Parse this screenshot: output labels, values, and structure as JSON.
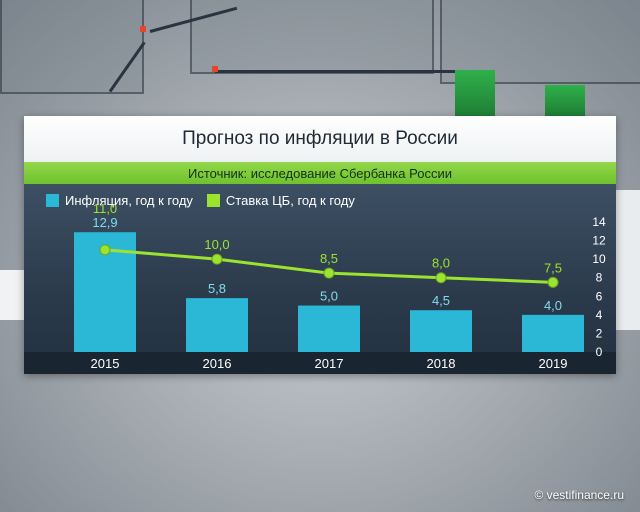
{
  "title": "Прогноз по инфляции в России",
  "source": "Источник: исследование Сбербанка России",
  "credit": "© vestifinance.ru",
  "colors": {
    "inflation": "#2ab8d6",
    "key_rate": "#9be32f"
  },
  "chart_data": {
    "type": "bar",
    "categories": [
      "2015",
      "2016",
      "2017",
      "2018",
      "2019"
    ],
    "series": [
      {
        "name": "Инфляция, год к году",
        "type": "bar",
        "values": [
          12.9,
          5.8,
          5.0,
          4.5,
          4.0
        ],
        "labels": [
          "12,9",
          "5,8",
          "5,0",
          "4,5",
          "4,0"
        ]
      },
      {
        "name": "Ставка ЦБ, год к году",
        "type": "line",
        "values": [
          11.0,
          10.0,
          8.5,
          8.0,
          7.5
        ],
        "labels": [
          "11,0",
          "10,0",
          "8,5",
          "8,0",
          "7,5"
        ]
      }
    ],
    "y_ticks": [
      "0",
      "2",
      "4",
      "6",
      "8",
      "10",
      "12",
      "14"
    ],
    "ylim": [
      0,
      14
    ],
    "y_axis_position": "right",
    "legend_position": "top-left"
  }
}
